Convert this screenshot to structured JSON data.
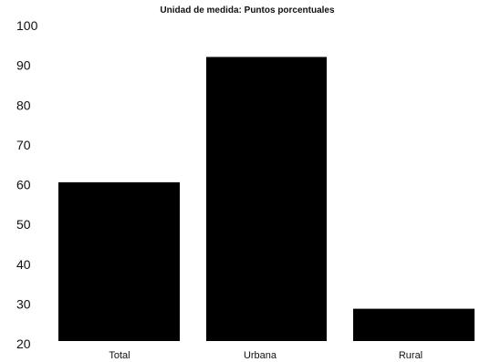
{
  "chart_data": {
    "type": "bar",
    "title": "Unidad de medida: Puntos porcentuales",
    "xlabel": "",
    "ylabel": "",
    "categories": [
      "Total",
      "Urbana",
      "Rural"
    ],
    "values": [
      60.6,
      92.1,
      28.8
    ],
    "ylim": [
      20,
      100
    ],
    "yticks": [
      20,
      30,
      40,
      50,
      60,
      70,
      80,
      90,
      100
    ],
    "grid": false,
    "legend": "none",
    "bar_color": "#000000",
    "text_color": "#111111"
  }
}
